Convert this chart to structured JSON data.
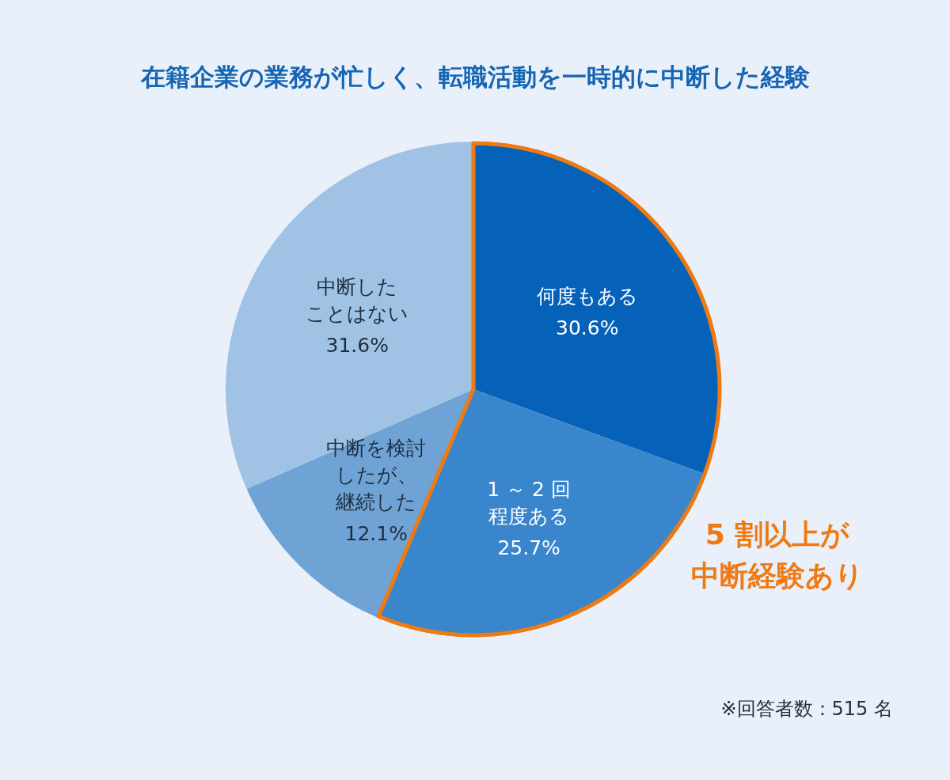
{
  "chart_data": {
    "type": "pie",
    "title": "在籍企業の業務が忙しく、転職活動を一時的に中断した経験",
    "categories": [
      "何度もある",
      "1 ～ 2 回程度ある",
      "中断を検討したが、継続した",
      "中断したことはない"
    ],
    "values": [
      30.6,
      25.7,
      12.1,
      31.6
    ],
    "value_labels": [
      "30.6%",
      "25.7%",
      "12.1%",
      "31.6%"
    ],
    "colors": [
      "#0562b8",
      "#3a86cc",
      "#6fa3d5",
      "#a0c2e5"
    ],
    "annotations": [
      "5 割以上が中断経験あり",
      "※回答者数：515 名"
    ]
  }
}
